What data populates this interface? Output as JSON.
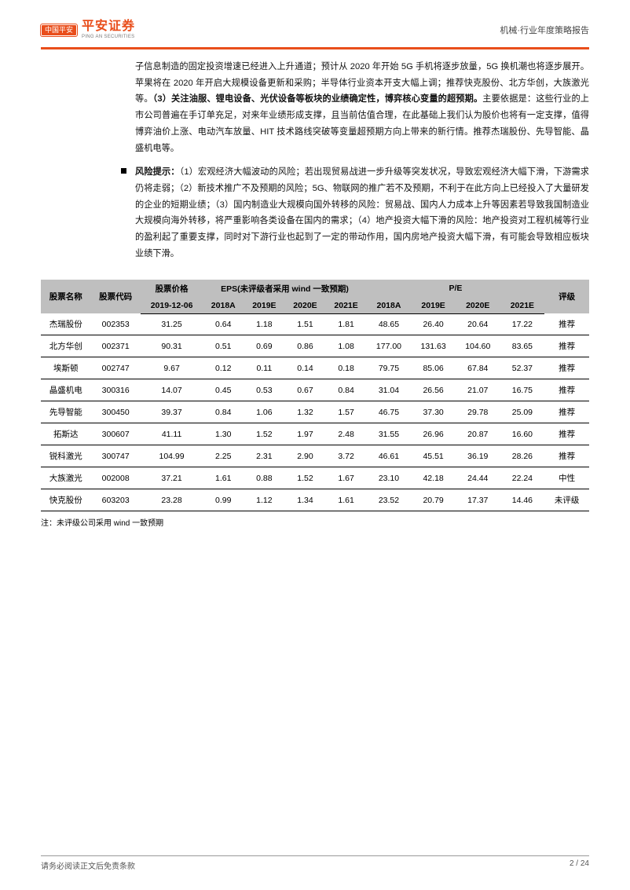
{
  "header": {
    "logo_badge": "中国平安",
    "logo_cn": "平安证券",
    "logo_en": "PING AN SECURITIES",
    "doc_type": "机械·行业年度策略报告"
  },
  "para1_pre": "子信息制造的固定投资增速已经进入上升通道；预计从 2020 年开始 5G 手机将逐步放量，5G 换机潮也将逐步展开。苹果将在 2020 年开启大规模设备更新和采购；半导体行业资本开支大幅上调；推荐快克股份、北方华创，大族激光等。",
  "para1_bold": "（3）关注油服、锂电设备、光伏设备等板块的业绩确定性，博弈核心变量的超预期。",
  "para1_post": "主要依据是：这些行业的上市公司普遍在手订单充足，对来年业绩形成支撑，且当前估值合理，在此基础上我们认为股价也将有一定支撑，值得博弈油价上涨、电动汽车放量、HIT 技术路线突破等变量超预期方向上带来的新行情。推荐杰瑞股份、先导智能、晶盛机电等。",
  "para2_label": "风险提示：",
  "para2_body": "（1）宏观经济大幅波动的风险；若出现贸易战进一步升级等突发状况，导致宏观经济大幅下滑，下游需求仍将走弱；（2）新技术推广不及预期的风险；5G、物联网的推广若不及预期，不利于在此方向上已经投入了大量研发的企业的短期业绩；（3）国内制造业大规模向国外转移的风险：贸易战、国内人力成本上升等因素若导致我国制造业大规模向海外转移，将严重影响各类设备在国内的需求；（4）地产投资大幅下滑的风险：地产投资对工程机械等行业的盈利起了重要支撑，同时对下游行业也起到了一定的带动作用，国内房地产投资大幅下滑，有可能会导致相应板块业绩下滑。",
  "table": {
    "group_headers": {
      "name": "股票名称",
      "code": "股票代码",
      "price": "股票价格",
      "eps": "EPS(未评级者采用 wind 一致预期)",
      "pe": "P/E",
      "rating": "评级"
    },
    "sub_headers": {
      "price_date": "2019-12-06",
      "y1": "2018A",
      "y2": "2019E",
      "y3": "2020E",
      "y4": "2021E"
    },
    "rows": [
      {
        "name": "杰瑞股份",
        "code": "002353",
        "price": "31.25",
        "e1": "0.64",
        "e2": "1.18",
        "e3": "1.51",
        "e4": "1.81",
        "p1": "48.65",
        "p2": "26.40",
        "p3": "20.64",
        "p4": "17.22",
        "rating": "推荐"
      },
      {
        "name": "北方华创",
        "code": "002371",
        "price": "90.31",
        "e1": "0.51",
        "e2": "0.69",
        "e3": "0.86",
        "e4": "1.08",
        "p1": "177.00",
        "p2": "131.63",
        "p3": "104.60",
        "p4": "83.65",
        "rating": "推荐"
      },
      {
        "name": "埃斯顿",
        "code": "002747",
        "price": "9.67",
        "e1": "0.12",
        "e2": "0.11",
        "e3": "0.14",
        "e4": "0.18",
        "p1": "79.75",
        "p2": "85.06",
        "p3": "67.84",
        "p4": "52.37",
        "rating": "推荐"
      },
      {
        "name": "晶盛机电",
        "code": "300316",
        "price": "14.07",
        "e1": "0.45",
        "e2": "0.53",
        "e3": "0.67",
        "e4": "0.84",
        "p1": "31.04",
        "p2": "26.56",
        "p3": "21.07",
        "p4": "16.75",
        "rating": "推荐"
      },
      {
        "name": "先导智能",
        "code": "300450",
        "price": "39.37",
        "e1": "0.84",
        "e2": "1.06",
        "e3": "1.32",
        "e4": "1.57",
        "p1": "46.75",
        "p2": "37.30",
        "p3": "29.78",
        "p4": "25.09",
        "rating": "推荐"
      },
      {
        "name": "拓斯达",
        "code": "300607",
        "price": "41.11",
        "e1": "1.30",
        "e2": "1.52",
        "e3": "1.97",
        "e4": "2.48",
        "p1": "31.55",
        "p2": "26.96",
        "p3": "20.87",
        "p4": "16.60",
        "rating": "推荐"
      },
      {
        "name": "锐科激光",
        "code": "300747",
        "price": "104.99",
        "e1": "2.25",
        "e2": "2.31",
        "e3": "2.90",
        "e4": "3.72",
        "p1": "46.61",
        "p2": "45.51",
        "p3": "36.19",
        "p4": "28.26",
        "rating": "推荐"
      },
      {
        "name": "大族激光",
        "code": "002008",
        "price": "37.21",
        "e1": "1.61",
        "e2": "0.88",
        "e3": "1.52",
        "e4": "1.67",
        "p1": "23.10",
        "p2": "42.18",
        "p3": "24.44",
        "p4": "22.24",
        "rating": "中性"
      },
      {
        "name": "快克股份",
        "code": "603203",
        "price": "23.28",
        "e1": "0.99",
        "e2": "1.12",
        "e3": "1.34",
        "e4": "1.61",
        "p1": "23.52",
        "p2": "20.79",
        "p3": "17.37",
        "p4": "14.46",
        "rating": "未评级"
      }
    ]
  },
  "note": "注：未评级公司采用 wind 一致预期",
  "footer": {
    "left": "请务必阅读正文后免责条款",
    "right": "2 / 24"
  }
}
